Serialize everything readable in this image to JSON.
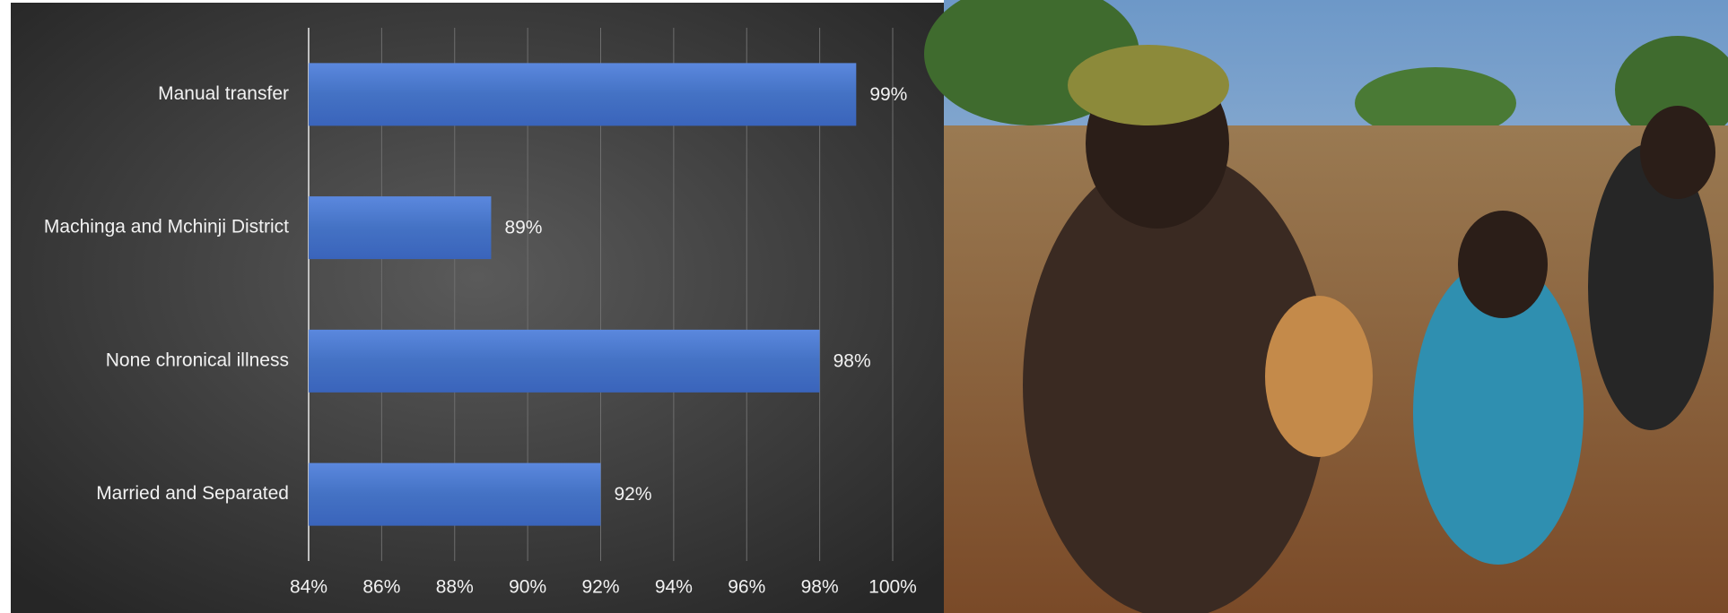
{
  "chart_data": {
    "type": "bar",
    "orientation": "horizontal",
    "categories": [
      "Manual transfer",
      "Machinga and Mchinji District",
      "None chronical illness",
      "Married and Separated"
    ],
    "values": [
      99,
      89,
      98,
      92
    ],
    "value_labels": [
      "99%",
      "89%",
      "98%",
      "92%"
    ],
    "color": "#4472c4",
    "xlim": [
      84,
      100
    ],
    "xticks": [
      {
        "value": 84,
        "label": "84%"
      },
      {
        "value": 86,
        "label": "86%"
      },
      {
        "value": 88,
        "label": "88%"
      },
      {
        "value": 90,
        "label": "90%"
      },
      {
        "value": 92,
        "label": "92%"
      },
      {
        "value": 94,
        "label": "94%"
      },
      {
        "value": 96,
        "label": "96%"
      },
      {
        "value": 98,
        "label": "98%"
      },
      {
        "value": 100,
        "label": "100%"
      }
    ],
    "grid": true
  }
}
